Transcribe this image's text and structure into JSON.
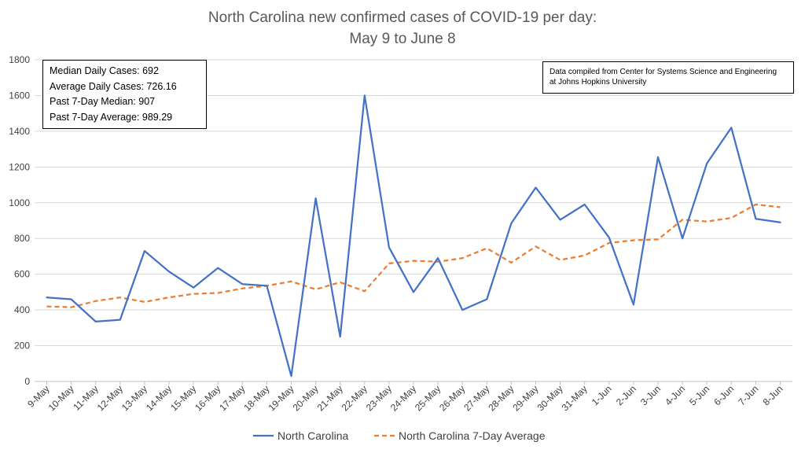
{
  "chart_data": {
    "type": "line",
    "title": [
      "North Carolina new confirmed cases of COVID-19 per day:",
      "May 9 to June 8"
    ],
    "xlabel": "",
    "ylabel": "",
    "ylim": [
      0,
      1800
    ],
    "yticks": [
      "0",
      "200",
      "400",
      "600",
      "800",
      "1000",
      "1200",
      "1400",
      "1600",
      "1800"
    ],
    "grid": true,
    "legend_position": "bottom",
    "categories": [
      "9-May",
      "10-May",
      "11-May",
      "12-May",
      "13-May",
      "14-May",
      "15-May",
      "16-May",
      "17-May",
      "18-May",
      "19-May",
      "20-May",
      "21-May",
      "22-May",
      "23-May",
      "24-May",
      "25-May",
      "26-May",
      "27-May",
      "28-May",
      "29-May",
      "30-May",
      "31-May",
      "1-Jun",
      "2-Jun",
      "3-Jun",
      "4-Jun",
      "5-Jun",
      "6-Jun",
      "7-Jun",
      "8-Jun"
    ],
    "series": [
      {
        "name": "North Carolina",
        "color": "#4472c4",
        "style": "solid",
        "values": [
          470,
          460,
          335,
          345,
          730,
          615,
          525,
          635,
          545,
          535,
          30,
          1025,
          250,
          1600,
          750,
          500,
          690,
          400,
          460,
          885,
          1085,
          905,
          990,
          805,
          430,
          1255,
          800,
          1220,
          1420,
          910,
          890
        ]
      },
      {
        "name": "North Carolina 7-Day Average",
        "color": "#ed7d31",
        "style": "dashed",
        "values": [
          420,
          415,
          450,
          470,
          445,
          470,
          490,
          495,
          520,
          535,
          560,
          515,
          555,
          505,
          660,
          675,
          670,
          690,
          745,
          665,
          755,
          680,
          705,
          775,
          790,
          795,
          905,
          895,
          915,
          990,
          975
        ]
      }
    ],
    "annotations": {
      "stats": [
        "Median Daily Cases: 692",
        "Average Daily Cases: 726.16",
        "Past 7-Day Median: 907",
        "Past 7-Day Average: 989.29"
      ],
      "source": [
        "Data compiled from Center for Systems Science and Engineering",
        "at Johns Hopkins University"
      ]
    }
  }
}
